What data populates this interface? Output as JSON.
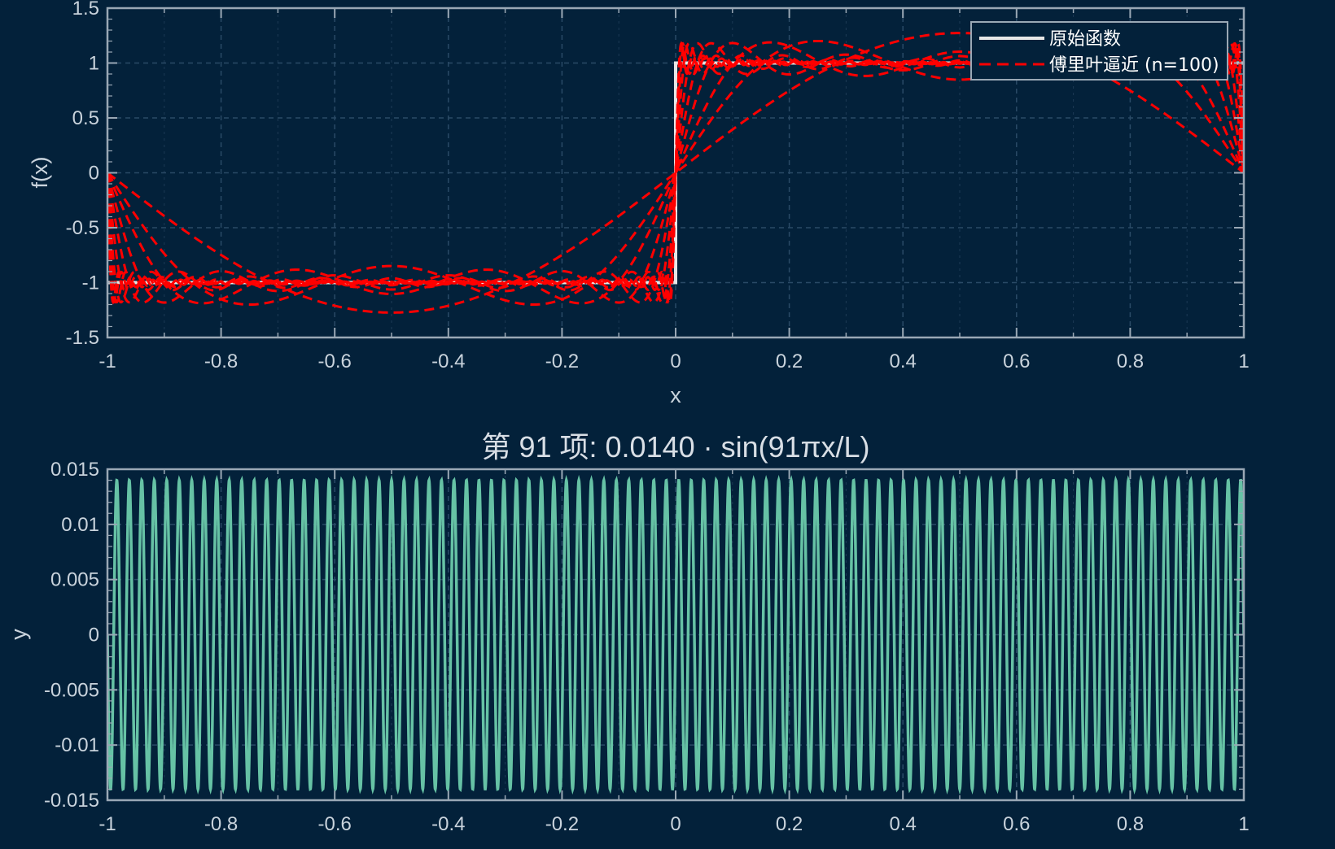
{
  "chart_data": [
    {
      "type": "line",
      "title": "",
      "xlabel": "x",
      "ylabel": "f(x)",
      "xlim": [
        -1,
        1
      ],
      "ylim": [
        -1.5,
        1.5
      ],
      "xticks": [
        "-1",
        "-0.8",
        "-0.6",
        "-0.4",
        "-0.2",
        "0",
        "0.2",
        "0.4",
        "0.6",
        "0.8",
        "1"
      ],
      "yticks": [
        "1.5",
        "1",
        "0.5",
        "0",
        "-0.5",
        "-1",
        "-1.5"
      ],
      "grid": true,
      "legend_position": "top-right",
      "series": [
        {
          "name": "原始函数",
          "color": "#e6e6e6",
          "style": "solid",
          "function": "square wave: -1 on (-1,0), +1 on (0,1)"
        },
        {
          "name": "傅里叶逼近 (n=100)",
          "color": "#ff0000",
          "style": "dashed",
          "terms": 100,
          "note": "overlaid partial Fourier sums up to 100 terms"
        }
      ]
    },
    {
      "type": "line",
      "title": "第 91 项: 0.0140 · sin(91πx/L)",
      "xlabel": "",
      "ylabel": "y",
      "xlim": [
        -1,
        1
      ],
      "ylim": [
        -0.015,
        0.015
      ],
      "xticks": [
        "-1",
        "-0.8",
        "-0.6",
        "-0.4",
        "-0.2",
        "0",
        "0.2",
        "0.4",
        "0.6",
        "0.8",
        "1"
      ],
      "yticks": [
        "0.015",
        "0.01",
        "0.005",
        "0",
        "-0.005",
        "-0.01",
        "-0.015"
      ],
      "grid": true,
      "series": [
        {
          "color": "#66c2a5",
          "style": "solid",
          "amplitude": 0.014,
          "harmonic": 91
        }
      ]
    }
  ]
}
